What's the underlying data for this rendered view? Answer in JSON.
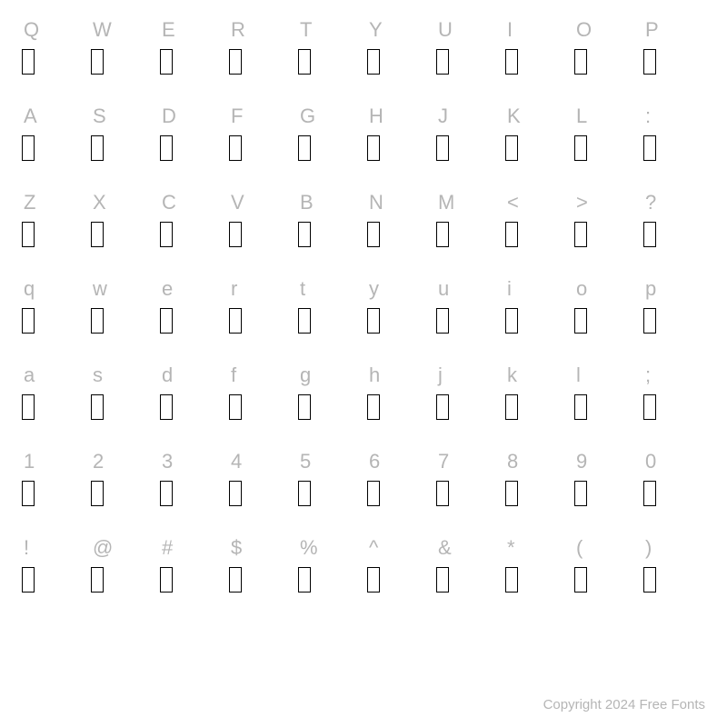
{
  "label_color": "#b5b5b5",
  "footer_color": "#b5b5b5",
  "glyph_border": "#000000",
  "rows": [
    [
      "Q",
      "W",
      "E",
      "R",
      "T",
      "Y",
      "U",
      "I",
      "O",
      "P"
    ],
    [
      "A",
      "S",
      "D",
      "F",
      "G",
      "H",
      "J",
      "K",
      "L",
      ":"
    ],
    [
      "Z",
      "X",
      "C",
      "V",
      "B",
      "N",
      "M",
      "<",
      ">",
      "?"
    ],
    [
      "q",
      "w",
      "e",
      "r",
      "t",
      "y",
      "u",
      "i",
      "o",
      "p"
    ],
    [
      "a",
      "s",
      "d",
      "f",
      "g",
      "h",
      "j",
      "k",
      "l",
      ";"
    ],
    [
      "1",
      "2",
      "3",
      "4",
      "5",
      "6",
      "7",
      "8",
      "9",
      "0"
    ],
    [
      "!",
      "@",
      "#",
      "$",
      "%",
      "^",
      "&",
      "*",
      "(",
      ")"
    ]
  ],
  "footer": "Copyright 2024 Free Fonts"
}
